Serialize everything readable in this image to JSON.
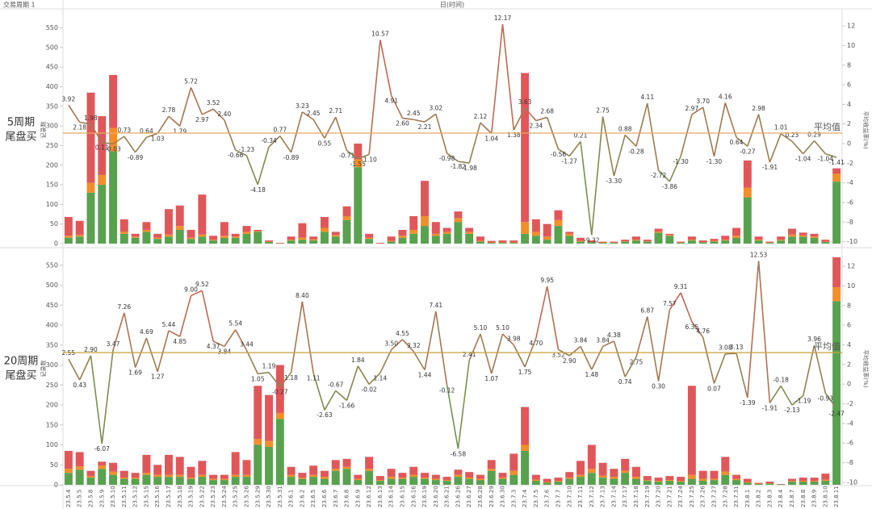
{
  "header": {
    "title": "交易周期 1",
    "x_title": "日(时间)"
  },
  "chart_data": [
    {
      "type": "combo",
      "title": [
        "5周期",
        "尾盘买"
      ],
      "ylabel": "记录数",
      "y2label": "平均收益率(%)",
      "ylim": [
        0,
        580
      ],
      "yticks": [
        0,
        50,
        100,
        150,
        200,
        250,
        300,
        350,
        400,
        450,
        500,
        550
      ],
      "y2lim": [
        -10.2,
        13
      ],
      "y2ticks": [
        -10,
        -8,
        -6,
        -4,
        -2,
        0,
        2,
        4,
        6,
        8,
        10,
        12
      ],
      "series": [
        {
          "color": "#59a14f",
          "values": [
            15,
            18,
            130,
            150,
            235,
            25,
            15,
            30,
            12,
            18,
            35,
            12,
            18,
            8,
            15,
            15,
            25,
            30,
            4,
            1,
            8,
            10,
            8,
            30,
            18,
            60,
            195,
            12,
            0,
            5,
            15,
            25,
            45,
            20,
            25,
            55,
            25,
            5,
            2,
            2,
            2,
            25,
            20,
            10,
            45,
            20,
            5,
            3,
            2,
            2,
            5,
            8,
            5,
            28,
            20,
            2,
            8,
            3,
            5,
            8,
            15,
            118,
            8,
            2,
            8,
            18,
            18,
            15,
            4,
            158
          ]
        },
        {
          "color": "#f28e2b",
          "values": [
            5,
            4,
            25,
            25,
            60,
            5,
            3,
            5,
            3,
            5,
            10,
            3,
            5,
            2,
            5,
            3,
            5,
            2,
            1,
            0,
            2,
            5,
            3,
            10,
            4,
            10,
            20,
            3,
            0,
            2,
            5,
            10,
            25,
            5,
            5,
            10,
            5,
            2,
            1,
            1,
            1,
            30,
            10,
            8,
            15,
            5,
            2,
            1,
            1,
            1,
            1,
            2,
            1,
            3,
            2,
            1,
            2,
            1,
            2,
            2,
            5,
            25,
            2,
            1,
            2,
            5,
            3,
            3,
            1,
            20
          ]
        },
        {
          "color": "#e15759",
          "values": [
            48,
            36,
            230,
            150,
            135,
            32,
            7,
            20,
            10,
            65,
            52,
            20,
            102,
            10,
            35,
            7,
            15,
            3,
            3,
            1,
            8,
            37,
            7,
            28,
            8,
            25,
            40,
            10,
            2,
            11,
            15,
            35,
            90,
            30,
            10,
            17,
            10,
            11,
            4,
            5,
            5,
            380,
            32,
            32,
            25,
            5,
            8,
            4,
            2,
            2,
            4,
            8,
            4,
            7,
            3,
            2,
            8,
            4,
            5,
            10,
            20,
            69,
            8,
            2,
            8,
            15,
            7,
            7,
            5,
            14
          ]
        },
        {
          "axis": "y2",
          "color": [
            "#59a14f",
            "#e15759"
          ],
          "values": [
            3.92,
            2.18,
            1.98,
            0.11,
            -0.03,
            0.73,
            -0.89,
            0.64,
            1.03,
            2.78,
            1.79,
            5.72,
            2.97,
            3.52,
            2.4,
            -0.66,
            -1.23,
            -4.18,
            -0.34,
            0.77,
            -0.89,
            3.23,
            2.45,
            0.55,
            2.71,
            -0.71,
            -1.55,
            -1.1,
            10.57,
            4.91,
            2.6,
            2.45,
            2.21,
            3.02,
            -0.98,
            -1.82,
            -1.98,
            2.12,
            1.04,
            12.17,
            1.38,
            3.63,
            2.34,
            2.68,
            -0.56,
            -1.27,
            0.21,
            -9.32,
            2.75,
            -3.3,
            0.88,
            -0.28,
            4.11,
            -2.72,
            -3.86,
            -1.3,
            2.97,
            3.7,
            -1.3,
            4.16,
            0.64,
            -0.27,
            2.98,
            -1.91,
            1.01,
            0.23,
            -1.04,
            0.29,
            -1.04,
            -1.41
          ],
          "value_labels": [
            "3.92",
            "2.18",
            "1.98",
            "0.11",
            "-0.03",
            "0.73",
            "-0.89",
            "0.64",
            "1.03",
            "2.78",
            "1.79",
            "5.72",
            "2.97",
            "3.52",
            "2.40",
            "-0.66",
            "-1.23",
            "-4.18",
            "-0.34",
            "0.77",
            "-0.89",
            "3.23",
            "2.45",
            "0.55",
            "2.71",
            "-0.71",
            "-1.55",
            "-1.10",
            "10.57",
            "4.91",
            "2.60",
            "2.45",
            "2.21",
            "3.02",
            "-0.98",
            "-1.82",
            "-1.98",
            "2.12",
            "1.04",
            "12.17",
            "1.38",
            "3.63",
            "2.34",
            "2.68",
            "-0.56",
            "-1.27",
            "0.21",
            "-9.32",
            "2.75",
            "-3.30",
            "0.88",
            "-0.28",
            "4.11",
            "-2.72",
            "-3.86",
            "-1.30",
            "2.97",
            "3.70",
            "-1.30",
            "4.16",
            "0.64",
            "-0.27",
            "2.98",
            "-1.91",
            "1.01",
            "0.23",
            "-1.04",
            "0.29",
            "-1.04",
            "-1.41"
          ]
        }
      ],
      "reference_line": {
        "value": 1.07,
        "label": "平均值",
        "color": "#e8a860"
      }
    },
    {
      "type": "combo",
      "title": [
        "20周期",
        "尾盘买"
      ],
      "ylabel": "记录数",
      "y2label": "平均收益率(%)",
      "categories": [
        "23.5.4",
        "23.5.5",
        "23.5.8",
        "23.5.9",
        "23.5.10",
        "23.5.11",
        "23.5.12",
        "23.5.15",
        "23.5.16",
        "23.5.17",
        "23.5.18",
        "23.5.19",
        "23.5.22",
        "23.5.23",
        "23.5.24",
        "23.5.25",
        "23.5.26",
        "23.5.29",
        "23.5.30",
        "23.5.31",
        "23.6.1",
        "23.6.2",
        "23.6.5",
        "23.6.6",
        "23.6.7",
        "23.6.8",
        "23.6.9",
        "23.6.12",
        "23.6.13",
        "23.6.14",
        "23.6.15",
        "23.6.16",
        "23.6.19",
        "23.6.20",
        "23.6.21",
        "23.6.26",
        "23.6.27",
        "23.6.28",
        "23.6.29",
        "23.6.30",
        "23.7.3",
        "23.7.4",
        "23.7.5",
        "23.7.6",
        "23.7.7",
        "23.7.10",
        "23.7.11",
        "23.7.12",
        "23.7.13",
        "23.7.14",
        "23.7.17",
        "23.7.18",
        "23.7.19",
        "23.7.20",
        "23.7.21",
        "23.7.24",
        "23.7.25",
        "23.7.26",
        "23.7.27",
        "23.7.28",
        "23.7.31",
        "23.8.1",
        "23.8.2",
        "23.8.3",
        "23.8.4",
        "23.8.7",
        "23.8.8",
        "23.8.9",
        "23.8.10",
        "23.8.11"
      ],
      "ylim": [
        0,
        582
      ],
      "yticks": [
        0,
        50,
        100,
        150,
        200,
        250,
        300,
        350,
        400,
        450,
        500,
        550
      ],
      "y2lim": [
        -10.25,
        13.4
      ],
      "y2ticks": [
        -10,
        -8,
        -6,
        -4,
        -2,
        0,
        2,
        4,
        6,
        8,
        10,
        12
      ],
      "series": [
        {
          "color": "#59a14f",
          "values": [
            30,
            38,
            18,
            40,
            25,
            15,
            15,
            25,
            20,
            20,
            20,
            15,
            20,
            12,
            12,
            20,
            20,
            100,
            95,
            165,
            20,
            15,
            20,
            15,
            35,
            40,
            12,
            35,
            10,
            15,
            15,
            20,
            15,
            12,
            10,
            20,
            15,
            12,
            35,
            15,
            25,
            85,
            10,
            5,
            8,
            15,
            20,
            30,
            18,
            15,
            30,
            15,
            10,
            8,
            10,
            8,
            15,
            10,
            12,
            25,
            12,
            5,
            2,
            3,
            1,
            8,
            8,
            8,
            10,
            460
          ]
        },
        {
          "color": "#f28e2b",
          "values": [
            10,
            8,
            4,
            8,
            8,
            3,
            3,
            5,
            5,
            5,
            5,
            3,
            5,
            3,
            3,
            5,
            5,
            15,
            15,
            15,
            5,
            3,
            5,
            5,
            5,
            5,
            3,
            5,
            2,
            5,
            3,
            5,
            3,
            3,
            2,
            5,
            3,
            3,
            5,
            3,
            10,
            15,
            3,
            2,
            2,
            3,
            5,
            10,
            5,
            5,
            5,
            5,
            2,
            2,
            2,
            2,
            10,
            5,
            3,
            8,
            3,
            2,
            1,
            1,
            0,
            2,
            2,
            2,
            3,
            35
          ]
        },
        {
          "color": "#e15759",
          "values": [
            45,
            36,
            13,
            10,
            22,
            17,
            12,
            45,
            25,
            50,
            45,
            27,
            35,
            10,
            10,
            57,
            37,
            133,
            115,
            120,
            20,
            12,
            23,
            15,
            22,
            20,
            10,
            30,
            10,
            20,
            12,
            20,
            12,
            10,
            8,
            13,
            14,
            10,
            22,
            12,
            43,
            95,
            12,
            8,
            8,
            14,
            35,
            60,
            32,
            20,
            30,
            25,
            10,
            8,
            10,
            10,
            223,
            20,
            20,
            37,
            10,
            8,
            2,
            4,
            1,
            5,
            8,
            8,
            15,
            75
          ]
        },
        {
          "axis": "y2",
          "color": [
            "#59a14f",
            "#e15759"
          ],
          "values": [
            2.55,
            0.43,
            2.9,
            -6.07,
            3.47,
            7.26,
            1.69,
            4.69,
            1.27,
            5.44,
            4.85,
            9.0,
            9.52,
            4.37,
            3.84,
            5.54,
            3.44,
            1.05,
            1.19,
            -0.27,
            1.18,
            8.4,
            1.11,
            -2.63,
            -0.67,
            -1.66,
            1.84,
            -0.02,
            1.14,
            3.5,
            4.55,
            3.32,
            1.44,
            7.41,
            -0.12,
            -6.58,
            2.41,
            5.1,
            1.07,
            5.1,
            3.98,
            1.75,
            4.7,
            9.95,
            3.52,
            2.9,
            3.84,
            1.48,
            3.84,
            4.38,
            0.74,
            2.75,
            6.87,
            0.3,
            7.57,
            9.31,
            6.35,
            4.76,
            0.07,
            3.08,
            3.13,
            -1.39,
            12.53,
            -1.91,
            -0.18,
            -2.13,
            -1.19,
            3.96,
            -0.93,
            -2.47
          ],
          "value_labels": [
            "2.55",
            "0.43",
            "2.90",
            "-6.07",
            "3.47",
            "7.26",
            "1.69",
            "4.69",
            "1.27",
            "5.44",
            "4.85",
            "9.00",
            "9.52",
            "4.37",
            "3.84",
            "5.54",
            "3.44",
            "1.05",
            "1.19",
            "-0.27",
            "1.18",
            "8.40",
            "1.11",
            "-2.63",
            "-0.67",
            "-1.66",
            "1.84",
            "-0.02",
            "1.14",
            "3.50",
            "4.55",
            "3.32",
            "1.44",
            "7.41",
            "-0.12",
            "-6.58",
            "2.41",
            "5.10",
            "1.07",
            "5.10",
            "3.98",
            "1.75",
            "4.70",
            "9.95",
            "3.52",
            "2.90",
            "3.84",
            "1.48",
            "3.84",
            "4.38",
            "0.74",
            "2.75",
            "6.87",
            "0.30",
            "7.57",
            "9.31",
            "6.35",
            "4.76",
            "0.07",
            "3.08",
            "3.13",
            "-1.39",
            "12.53",
            "-1.91",
            "-0.18",
            "-2.13",
            "-1.19",
            "3.96",
            "-0.93",
            "-2.47"
          ]
        }
      ],
      "reference_line": {
        "value": 3.21,
        "label": "平均值",
        "color": "#c8a040"
      }
    }
  ]
}
